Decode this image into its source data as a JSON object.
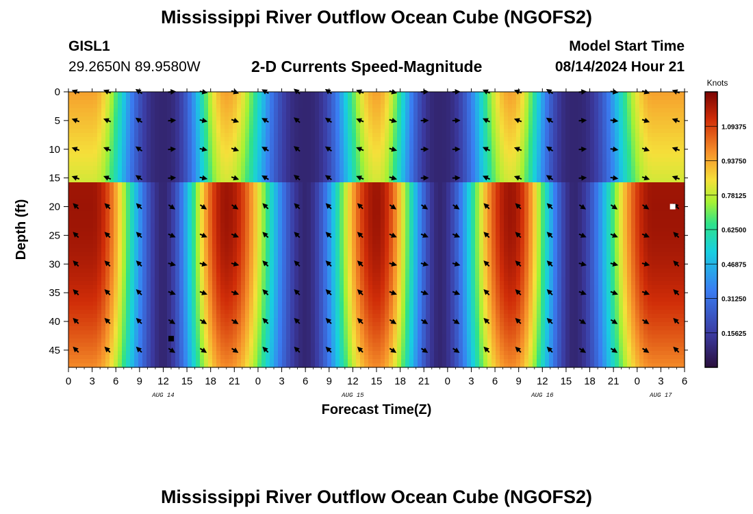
{
  "header": {
    "title": "Mississippi River Outflow Ocean Cube (NGOFS2)",
    "station_id": "GISL1",
    "station_coords": "29.2650N  89.9580W",
    "product": "2-D Currents Speed-Magnitude",
    "model_start_label": "Model Start Time",
    "model_start_value": "08/14/2024 Hour 21"
  },
  "chart_data": {
    "type": "heatmap",
    "title": "2-D Currents Speed-Magnitude",
    "xlabel": "Forecast Time(Z)",
    "ylabel": "Depth (ft)",
    "x_tick_labels": [
      "0",
      "3",
      "6",
      "9",
      "12",
      "15",
      "18",
      "21",
      "0",
      "3",
      "6",
      "9",
      "12",
      "15",
      "18",
      "21",
      "0",
      "3",
      "6",
      "9",
      "12",
      "15",
      "18",
      "21",
      "0",
      "3",
      "6"
    ],
    "day_labels": [
      {
        "text": "AUG 14",
        "hour": 12
      },
      {
        "text": "AUG 15",
        "hour": 36
      },
      {
        "text": "AUG 16",
        "hour": 60
      },
      {
        "text": "AUG 17",
        "hour": 75
      }
    ],
    "xlim_hours": [
      0,
      78
    ],
    "y_ticks": [
      0,
      5,
      10,
      15,
      20,
      25,
      30,
      35,
      40,
      45
    ],
    "ylim_depth_ft": [
      0,
      48
    ],
    "colorbar": {
      "units": "Knots",
      "range": [
        0.0,
        1.25
      ],
      "tick_values": [
        0.15625,
        0.3125,
        0.46875,
        0.625,
        0.78125,
        0.9375,
        1.09375
      ],
      "tick_labels": [
        "0.15625",
        "0.31250",
        "0.46875",
        "0.62500",
        "0.78125",
        "0.93750",
        "1.09375"
      ]
    },
    "tidal_pattern": {
      "min_speed_hours": [
        12,
        30,
        47,
        64
      ],
      "max_speed_hours": [
        3,
        20,
        39,
        56,
        74
      ],
      "near_surface_peak_knots": 0.95,
      "deep_peak_knots": 1.2,
      "layer_break_depth_ft": 15.5
    },
    "arrow_columns_hours": [
      1,
      5,
      9,
      13,
      17,
      21,
      25,
      29,
      33,
      37,
      41,
      45,
      49,
      53,
      57,
      61,
      65,
      69,
      73,
      77
    ],
    "arrow_rows_depth_ft": [
      0,
      5,
      10,
      15,
      20,
      25,
      30,
      35,
      40,
      45
    ],
    "markers": [
      {
        "hour": 13,
        "depth_ft": 43,
        "color": "#000000"
      },
      {
        "hour": 76.5,
        "depth_ft": 20,
        "color": "#ffffff"
      }
    ]
  }
}
